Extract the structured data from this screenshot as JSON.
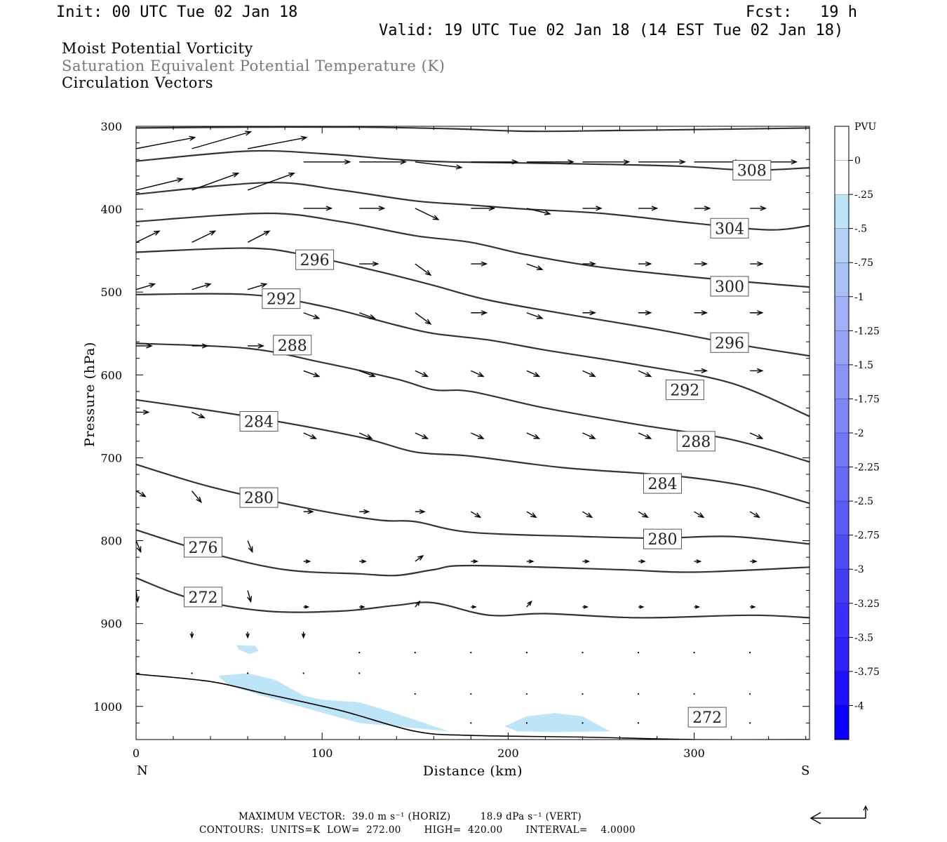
{
  "header": {
    "init": "Init: 00 UTC Tue 02 Jan 18",
    "fcst": "Fcst:   19 h",
    "valid": "Valid: 19 UTC Tue 02 Jan 18 (14 EST Tue 02 Jan 18)"
  },
  "titles": [
    "Moist Potential Vorticity",
    "Saturation Equivalent Potential Temperature (K)",
    "Circulation Vectors"
  ],
  "footer": {
    "line1": "MAXIMUM VECTOR:  39.0 m s⁻¹ (HORIZ)         18.9 dPa s⁻¹ (VERT)",
    "line2": "CONTOURS:  UNITS=K  LOW=  272.00       HIGH=  420.00       INTERVAL=    4.0000"
  },
  "colors": {
    "contour": "#333333",
    "pv_shading": "#bde4f7",
    "terrain": "#000000"
  },
  "chart_data": {
    "type": "cross-section",
    "xlabel": "Distance (km)",
    "ylabel": "Pressure (hPa)",
    "xlim": [
      0,
      362
    ],
    "ylim": [
      1040,
      300
    ],
    "x_ticks": [
      0,
      100,
      200,
      300
    ],
    "y_ticks": [
      300,
      400,
      500,
      600,
      700,
      800,
      900,
      1000
    ],
    "left_end_label": "N",
    "right_end_label": "S",
    "colorbar": {
      "unit": "PVU",
      "labels": [
        "0",
        "-.25",
        "-.5",
        "-.75",
        "-1",
        "-1.25",
        "-1.5",
        "-1.75",
        "-2",
        "-2.25",
        "-2.5",
        "-2.75",
        "-3",
        "-3.25",
        "-3.5",
        "-3.75",
        "-4"
      ],
      "colors": [
        "#ffffff",
        "#ffffff",
        "#bde4f7",
        "#b4d0f7",
        "#a9c0f7",
        "#9eb1f7",
        "#93a3f7",
        "#8894f7",
        "#7d85f7",
        "#7277f8",
        "#6768f8",
        "#5b5af8",
        "#504bf9",
        "#453cf9",
        "#3a2efa",
        "#2e1ffb",
        "#1f0ffc",
        "#0a00ff"
      ]
    },
    "theta_e_contours": [
      {
        "value": 272,
        "points": [
          [
            0,
            845
          ],
          [
            30,
            870
          ],
          [
            70,
            885
          ],
          [
            110,
            885
          ],
          [
            140,
            878
          ],
          [
            160,
            875
          ],
          [
            190,
            890
          ],
          [
            220,
            888
          ],
          [
            270,
            893
          ],
          [
            330,
            890
          ],
          [
            362,
            893
          ]
        ]
      },
      {
        "value": 276,
        "points": [
          [
            0,
            787
          ],
          [
            40,
            815
          ],
          [
            80,
            835
          ],
          [
            120,
            840
          ],
          [
            140,
            842
          ],
          [
            160,
            835
          ],
          [
            180,
            830
          ],
          [
            260,
            835
          ],
          [
            300,
            838
          ],
          [
            362,
            832
          ]
        ]
      },
      {
        "value": 280,
        "points": [
          [
            0,
            708
          ],
          [
            40,
            735
          ],
          [
            90,
            760
          ],
          [
            130,
            775
          ],
          [
            150,
            777
          ],
          [
            180,
            790
          ],
          [
            240,
            795
          ],
          [
            280,
            797
          ],
          [
            320,
            795
          ],
          [
            362,
            804
          ]
        ]
      },
      {
        "value": 284,
        "points": [
          [
            0,
            630
          ],
          [
            60,
            650
          ],
          [
            120,
            675
          ],
          [
            150,
            693
          ],
          [
            180,
            698
          ],
          [
            230,
            712
          ],
          [
            290,
            722
          ],
          [
            330,
            735
          ],
          [
            362,
            755
          ]
        ]
      },
      {
        "value": 288,
        "points": [
          [
            0,
            562
          ],
          [
            60,
            568
          ],
          [
            100,
            585
          ],
          [
            140,
            605
          ],
          [
            160,
            618
          ],
          [
            180,
            620
          ],
          [
            220,
            640
          ],
          [
            270,
            660
          ],
          [
            320,
            678
          ],
          [
            362,
            705
          ]
        ]
      },
      {
        "value": 292,
        "points": [
          [
            0,
            503
          ],
          [
            60,
            503
          ],
          [
            100,
            517
          ],
          [
            140,
            540
          ],
          [
            160,
            550
          ],
          [
            190,
            558
          ],
          [
            220,
            570
          ],
          [
            270,
            588
          ],
          [
            320,
            610
          ],
          [
            362,
            650
          ]
        ]
      },
      {
        "value": 296,
        "points": [
          [
            0,
            452
          ],
          [
            60,
            447
          ],
          [
            90,
            455
          ],
          [
            130,
            475
          ],
          [
            160,
            492
          ],
          [
            190,
            510
          ],
          [
            240,
            530
          ],
          [
            280,
            545
          ],
          [
            320,
            562
          ],
          [
            362,
            577
          ]
        ]
      },
      {
        "value": 300,
        "points": [
          [
            0,
            415
          ],
          [
            70,
            405
          ],
          [
            110,
            415
          ],
          [
            150,
            432
          ],
          [
            180,
            440
          ],
          [
            210,
            455
          ],
          [
            250,
            470
          ],
          [
            300,
            482
          ],
          [
            340,
            490
          ],
          [
            362,
            494
          ]
        ]
      },
      {
        "value": 304,
        "points": [
          [
            0,
            382
          ],
          [
            70,
            368
          ],
          [
            110,
            377
          ],
          [
            150,
            390
          ],
          [
            180,
            395
          ],
          [
            210,
            400
          ],
          [
            250,
            405
          ],
          [
            300,
            417
          ],
          [
            340,
            425
          ],
          [
            362,
            420
          ]
        ]
      },
      {
        "value": 308,
        "points": [
          [
            0,
            342
          ],
          [
            60,
            330
          ],
          [
            100,
            333
          ],
          [
            140,
            340
          ],
          [
            170,
            343
          ],
          [
            230,
            345
          ],
          [
            290,
            348
          ],
          [
            330,
            353
          ],
          [
            362,
            350
          ]
        ]
      },
      {
        "value": 312,
        "points": [
          [
            0,
            302
          ],
          [
            60,
            301
          ],
          [
            120,
            301
          ],
          [
            170,
            303
          ],
          [
            210,
            306
          ],
          [
            260,
            305
          ],
          [
            300,
            304
          ],
          [
            362,
            302
          ]
        ]
      }
    ],
    "contour_labels": [
      {
        "text": "308",
        "x": 331,
        "p": 353
      },
      {
        "text": "304",
        "x": 319,
        "p": 423
      },
      {
        "text": "300",
        "x": 319,
        "p": 493
      },
      {
        "text": "296",
        "x": 319,
        "p": 561
      },
      {
        "text": "292",
        "x": 295,
        "p": 618
      },
      {
        "text": "288",
        "x": 301,
        "p": 680
      },
      {
        "text": "284",
        "x": 283,
        "p": 731
      },
      {
        "text": "280",
        "x": 283,
        "p": 798
      },
      {
        "text": "296",
        "x": 96,
        "p": 461
      },
      {
        "text": "292",
        "x": 78,
        "p": 508
      },
      {
        "text": "288",
        "x": 84,
        "p": 564
      },
      {
        "text": "284",
        "x": 66,
        "p": 656
      },
      {
        "text": "280",
        "x": 66,
        "p": 748
      },
      {
        "text": "276",
        "x": 36,
        "p": 808
      },
      {
        "text": "272",
        "x": 36,
        "p": 868
      },
      {
        "text": "272",
        "x": 307,
        "p": 1013
      }
    ],
    "pv_regions": [
      [
        [
          44,
          963
        ],
        [
          60,
          960
        ],
        [
          75,
          968
        ],
        [
          90,
          987
        ],
        [
          100,
          992
        ],
        [
          120,
          995
        ],
        [
          135,
          1005
        ],
        [
          155,
          1020
        ],
        [
          168,
          1030
        ],
        [
          120,
          1020
        ],
        [
          80,
          995
        ],
        [
          50,
          975
        ]
      ],
      [
        [
          54,
          926
        ],
        [
          64,
          927
        ],
        [
          66,
          933
        ],
        [
          61,
          937
        ],
        [
          55,
          931
        ]
      ],
      [
        [
          198,
          1024
        ],
        [
          210,
          1012
        ],
        [
          225,
          1008
        ],
        [
          240,
          1012
        ],
        [
          248,
          1022
        ],
        [
          255,
          1030
        ],
        [
          225,
          1031
        ],
        [
          205,
          1030
        ]
      ]
    ],
    "terrain": [
      [
        0,
        961
      ],
      [
        40,
        970
      ],
      [
        70,
        985
      ],
      [
        110,
        1005
      ],
      [
        150,
        1030
      ],
      [
        180,
        1035
      ],
      [
        240,
        1037
      ],
      [
        300,
        1040
      ],
      [
        362,
        1040
      ]
    ],
    "vector_rows": [
      {
        "p": 327,
        "x": [
          0,
          30,
          60
        ],
        "u": [
          38,
          38,
          38
        ],
        "w": [
          -2,
          -3,
          -2
        ]
      },
      {
        "p": 343,
        "x": [
          90,
          120,
          150,
          180,
          210,
          240,
          270,
          300,
          330
        ],
        "u": [
          30,
          30,
          30,
          30,
          30,
          30,
          30,
          30,
          30
        ],
        "w": [
          0,
          0,
          1,
          0,
          0,
          0,
          0,
          0,
          0
        ]
      },
      {
        "p": 377,
        "x": [
          0,
          30,
          60
        ],
        "u": [
          30,
          30,
          30
        ],
        "w": [
          -2,
          -3,
          -3
        ]
      },
      {
        "p": 399,
        "x": [
          90,
          120,
          150,
          180,
          210,
          240,
          270,
          300,
          330
        ],
        "u": [
          18,
          16,
          15,
          15,
          15,
          12,
          12,
          10,
          10
        ],
        "w": [
          0,
          0,
          2,
          0,
          1,
          0,
          0,
          0,
          0
        ]
      },
      {
        "p": 440,
        "x": [
          0,
          30,
          60
        ],
        "u": [
          15,
          15,
          14
        ],
        "w": [
          -2,
          -2,
          -2
        ]
      },
      {
        "p": 466,
        "x": [
          90,
          120,
          150,
          180,
          210,
          240,
          270,
          300,
          330
        ],
        "u": [
          10,
          12,
          10,
          10,
          10,
          8,
          8,
          8,
          8
        ],
        "w": [
          0,
          0,
          2,
          0,
          1,
          0,
          0,
          0,
          0
        ]
      },
      {
        "p": 497,
        "x": [
          0,
          30,
          60
        ],
        "u": [
          12,
          12,
          12
        ],
        "w": [
          -1,
          -1,
          -1
        ]
      },
      {
        "p": 525,
        "x": [
          90,
          120,
          150,
          180,
          210,
          240,
          270,
          300,
          330
        ],
        "u": [
          10,
          10,
          10,
          10,
          10,
          8,
          8,
          8,
          8
        ],
        "w": [
          1,
          1,
          2,
          0,
          1,
          0,
          0,
          0,
          0
        ]
      },
      {
        "p": 565,
        "x": [
          0,
          30,
          60
        ],
        "u": [
          10,
          10,
          10
        ],
        "w": [
          0,
          0,
          0
        ]
      },
      {
        "p": 595,
        "x": [
          90,
          120,
          150,
          180,
          210,
          240,
          270,
          300,
          330
        ],
        "u": [
          10,
          10,
          8,
          8,
          8,
          8,
          8,
          8,
          8
        ],
        "w": [
          1,
          1,
          1,
          1,
          1,
          1,
          1,
          0,
          0
        ]
      },
      {
        "p": 645,
        "x": [
          0,
          30,
          60
        ],
        "u": [
          8,
          8,
          8
        ],
        "w": [
          0,
          1,
          1
        ]
      },
      {
        "p": 670,
        "x": [
          90,
          120,
          150,
          180,
          210,
          240,
          270,
          300,
          330
        ],
        "u": [
          8,
          8,
          8,
          8,
          8,
          8,
          8,
          8,
          8
        ],
        "w": [
          1,
          1,
          1,
          1,
          1,
          1,
          1,
          1,
          1
        ]
      },
      {
        "p": 740,
        "x": [
          0,
          30,
          60
        ],
        "u": [
          6,
          6,
          6
        ],
        "w": [
          1,
          2,
          2
        ]
      },
      {
        "p": 765,
        "x": [
          90,
          120,
          150,
          180,
          210,
          240,
          270,
          300,
          330
        ],
        "u": [
          6,
          6,
          6,
          6,
          6,
          6,
          6,
          6,
          6
        ],
        "w": [
          0,
          0,
          0,
          1,
          1,
          1,
          1,
          1,
          1
        ]
      },
      {
        "p": 800,
        "x": [
          0,
          30,
          60
        ],
        "u": [
          3,
          3,
          3
        ],
        "w": [
          2,
          2,
          2
        ]
      },
      {
        "p": 825,
        "x": [
          90,
          120,
          150,
          180,
          210,
          240,
          270,
          300,
          330
        ],
        "u": [
          4,
          4,
          5,
          4,
          4,
          4,
          4,
          4,
          4
        ],
        "w": [
          0,
          0,
          -1,
          0,
          0,
          0,
          0,
          0,
          0
        ]
      },
      {
        "p": 860,
        "x": [
          0,
          30,
          60
        ],
        "u": [
          1,
          1,
          2
        ],
        "w": [
          2,
          2,
          2
        ]
      },
      {
        "p": 880,
        "x": [
          90,
          120,
          150,
          180,
          210,
          240,
          270,
          300,
          330
        ],
        "u": [
          3,
          3,
          3,
          3,
          3,
          3,
          3,
          3,
          3
        ],
        "w": [
          0,
          0,
          -1,
          0,
          -1,
          0,
          0,
          0,
          0
        ]
      },
      {
        "p": 910,
        "x": [
          30,
          60,
          90
        ],
        "u": [
          0,
          0,
          0
        ],
        "w": [
          1,
          1,
          1
        ]
      },
      {
        "p": 935,
        "x": [
          120,
          150,
          180,
          210,
          240,
          270,
          300,
          330
        ],
        "u": [
          1,
          1,
          1,
          1,
          1,
          1,
          1,
          1
        ],
        "w": [
          0,
          0,
          0,
          0,
          0,
          0,
          0,
          0
        ]
      },
      {
        "p": 960,
        "x": [
          30,
          60,
          90,
          120
        ],
        "u": [
          1,
          1,
          1,
          1
        ],
        "w": [
          0,
          0,
          0,
          0
        ]
      },
      {
        "p": 985,
        "x": [
          150,
          180,
          210,
          240,
          270,
          300,
          330
        ],
        "u": [
          1,
          1,
          1,
          1,
          1,
          1,
          1
        ],
        "w": [
          0,
          0,
          0,
          0,
          0,
          0,
          0
        ]
      },
      {
        "p": 1020,
        "x": [
          180,
          210,
          240,
          270,
          300,
          330
        ],
        "u": [
          1,
          1,
          1,
          1,
          1,
          1
        ],
        "w": [
          0,
          0,
          0,
          0,
          0,
          0
        ]
      }
    ]
  }
}
